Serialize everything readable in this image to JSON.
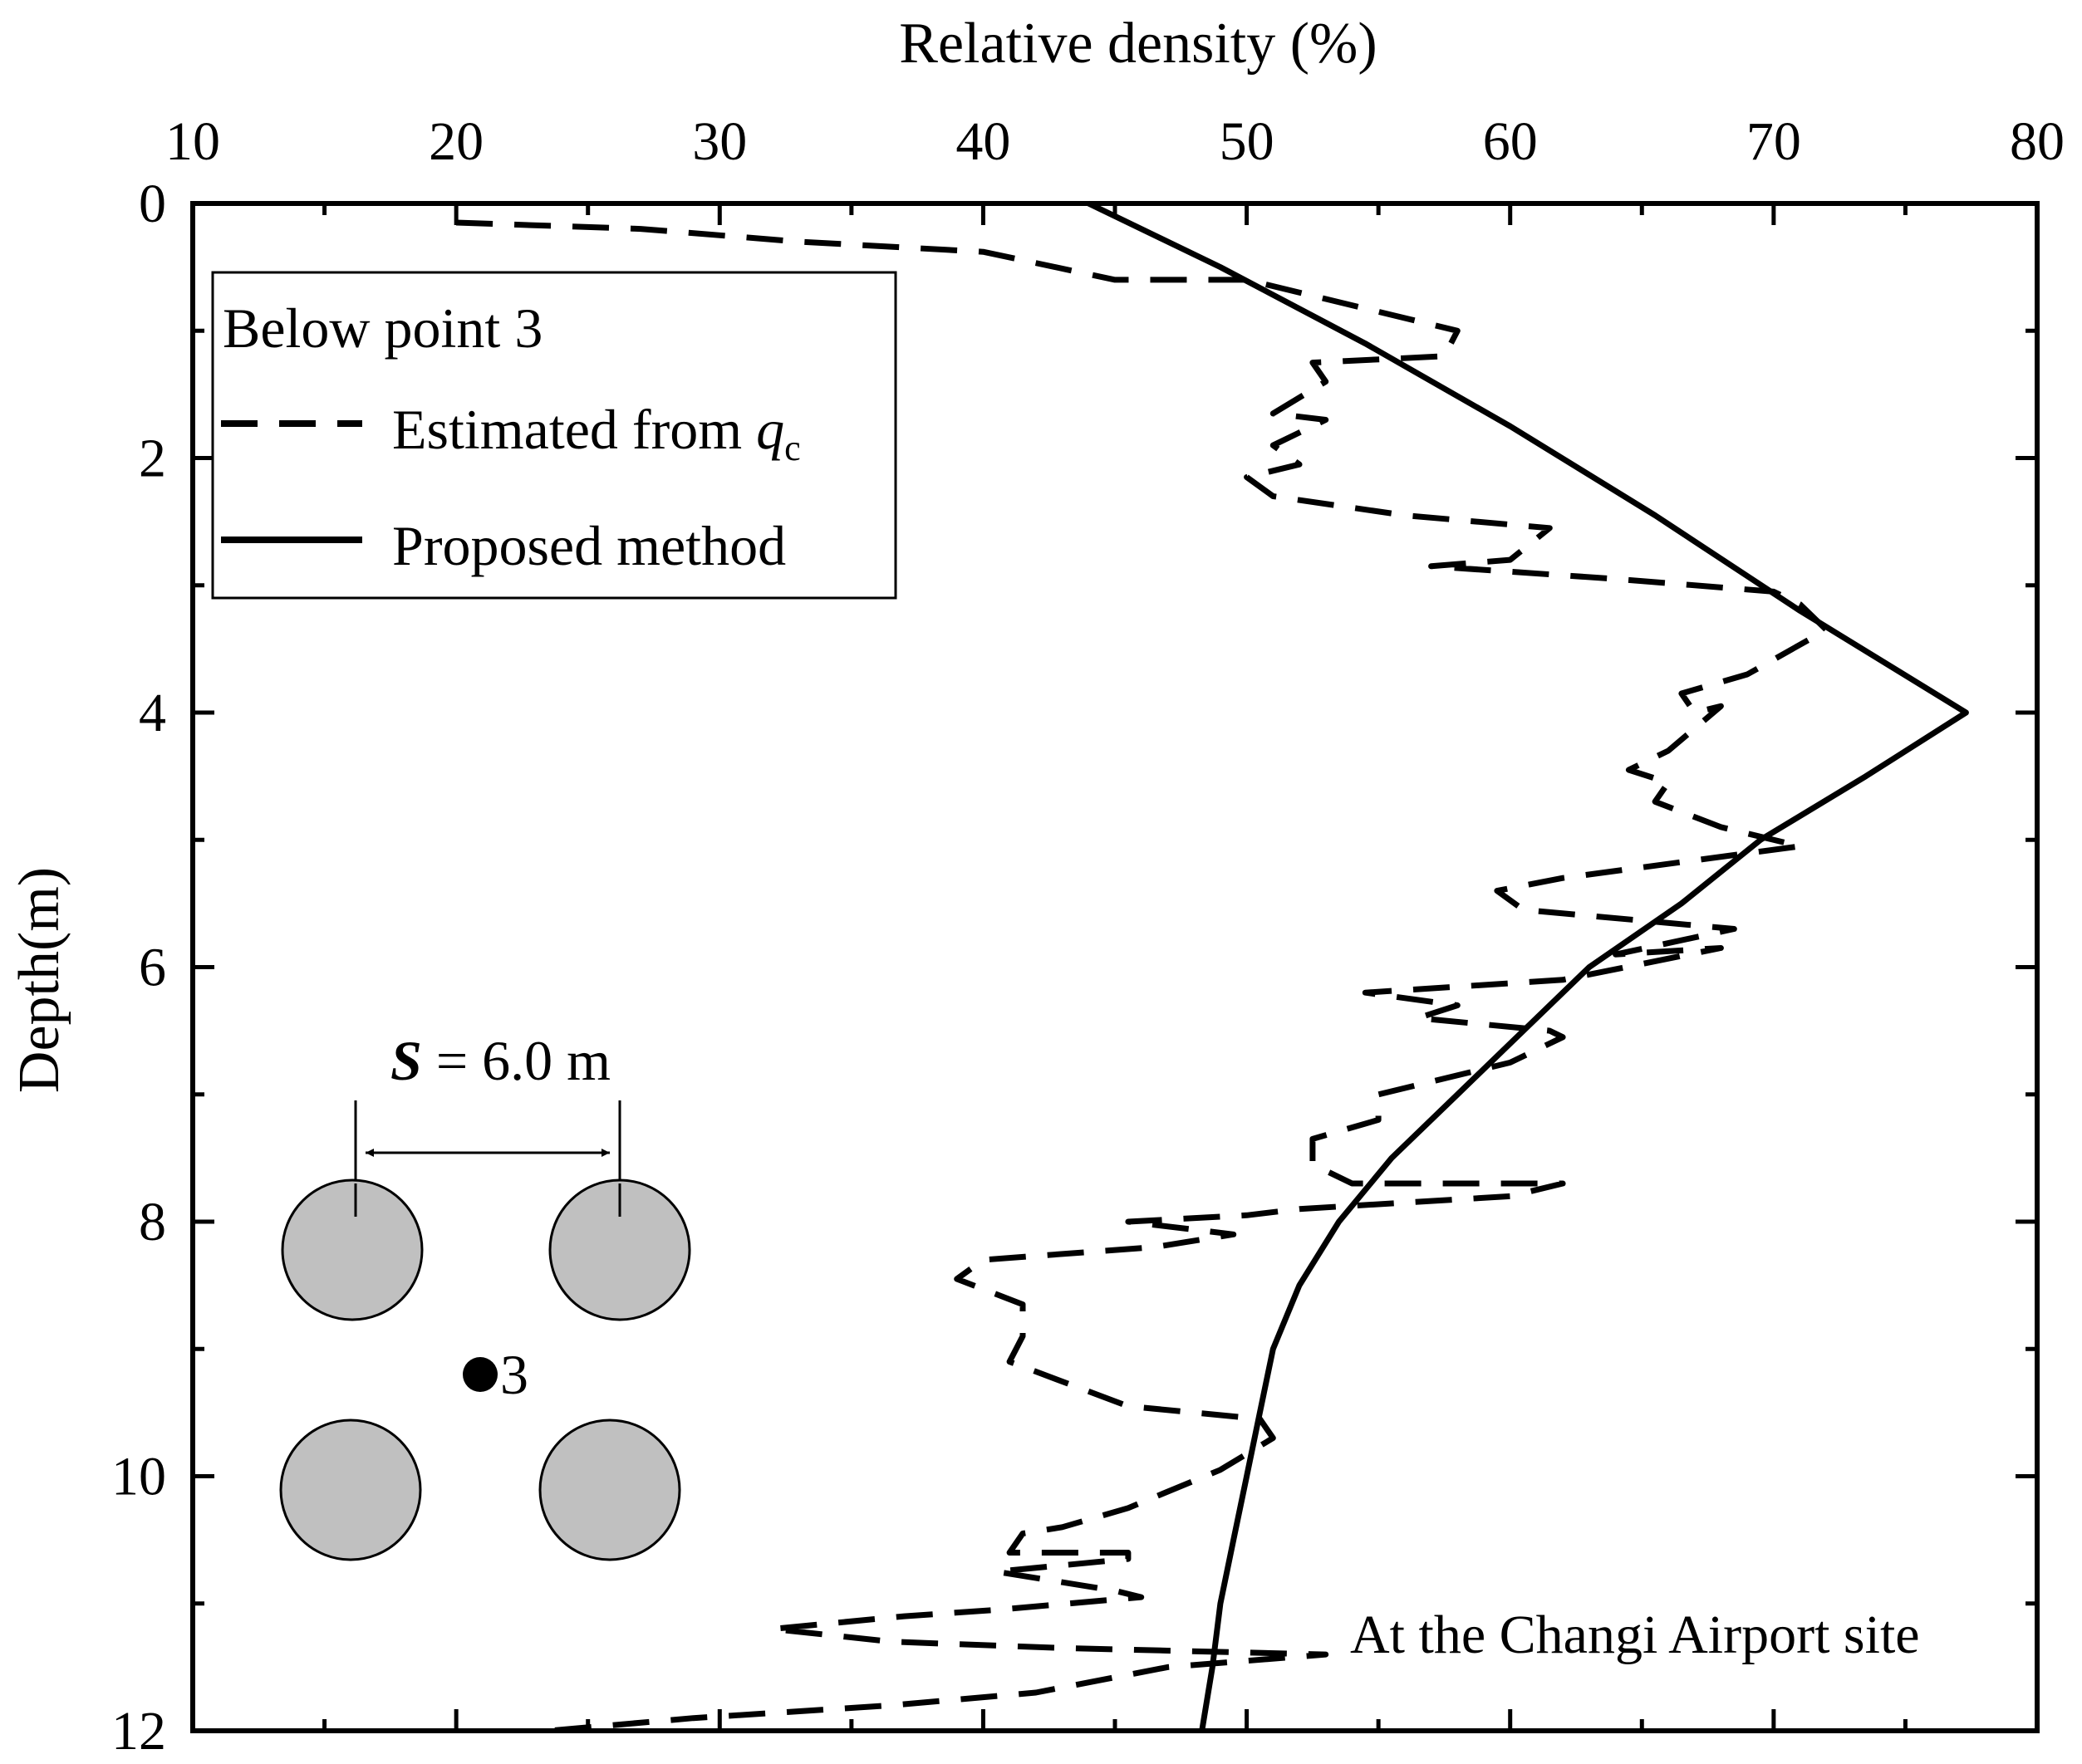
{
  "chart_data": {
    "type": "line",
    "title": "",
    "xlabel": "Relative density (%)",
    "ylabel": "Depth(m)",
    "xlim": [
      10,
      80
    ],
    "ylim": [
      0,
      12
    ],
    "x_axis_position": "top",
    "y_axis_inverted": true,
    "x_ticks": [
      10,
      20,
      30,
      40,
      50,
      60,
      70,
      80
    ],
    "y_ticks": [
      0,
      2,
      4,
      6,
      8,
      10,
      12
    ],
    "grid": false,
    "legend": {
      "title": "Below point 3",
      "placement": "top-left",
      "entries": [
        {
          "label": "Estimated from ",
          "label_italic": "q",
          "label_sub": "c",
          "style": "dashed"
        },
        {
          "label": "Proposed method",
          "style": "solid"
        }
      ]
    },
    "annotation": "At the Changi Airport site",
    "inset": {
      "spacing_symbol": "S",
      "spacing_text": " = 6.0 m",
      "point_label": "3"
    },
    "series": [
      {
        "name": "Estimated from qc",
        "style": "dashed",
        "points": [
          [
            20.0,
            0.15
          ],
          [
            27.0,
            0.2
          ],
          [
            33.0,
            0.3
          ],
          [
            40.0,
            0.38
          ],
          [
            45.0,
            0.6
          ],
          [
            50.0,
            0.6
          ],
          [
            55.0,
            0.85
          ],
          [
            58.0,
            1.0
          ],
          [
            57.5,
            1.2
          ],
          [
            52.5,
            1.25
          ],
          [
            53.0,
            1.4
          ],
          [
            51.0,
            1.65
          ],
          [
            53.0,
            1.7
          ],
          [
            51.0,
            1.9
          ],
          [
            52.0,
            2.05
          ],
          [
            50.0,
            2.15
          ],
          [
            51.0,
            2.3
          ],
          [
            56.0,
            2.45
          ],
          [
            61.5,
            2.55
          ],
          [
            60.0,
            2.8
          ],
          [
            57.0,
            2.85
          ],
          [
            64.0,
            2.95
          ],
          [
            70.0,
            3.05
          ],
          [
            71.0,
            3.15
          ],
          [
            72.0,
            3.35
          ],
          [
            69.0,
            3.7
          ],
          [
            66.5,
            3.85
          ],
          [
            67.0,
            4.0
          ],
          [
            68.0,
            3.95
          ],
          [
            66.0,
            4.3
          ],
          [
            64.5,
            4.45
          ],
          [
            66.0,
            4.55
          ],
          [
            65.5,
            4.7
          ],
          [
            68.0,
            4.9
          ],
          [
            71.0,
            5.05
          ],
          [
            62.0,
            5.3
          ],
          [
            59.5,
            5.4
          ],
          [
            60.5,
            5.55
          ],
          [
            68.5,
            5.7
          ],
          [
            64.0,
            5.9
          ],
          [
            68.0,
            5.85
          ],
          [
            62.0,
            6.1
          ],
          [
            54.5,
            6.2
          ],
          [
            58.0,
            6.3
          ],
          [
            56.5,
            6.4
          ],
          [
            61.5,
            6.5
          ],
          [
            62.0,
            6.55
          ],
          [
            60.0,
            6.75
          ],
          [
            55.0,
            7.0
          ],
          [
            55.0,
            7.2
          ],
          [
            52.5,
            7.35
          ],
          [
            52.5,
            7.55
          ],
          [
            54.0,
            7.7
          ],
          [
            62.0,
            7.7
          ],
          [
            60.0,
            7.8
          ],
          [
            52.0,
            7.9
          ],
          [
            50.0,
            7.95
          ],
          [
            45.5,
            8.0
          ],
          [
            49.5,
            8.1
          ],
          [
            46.5,
            8.2
          ],
          [
            40.0,
            8.3
          ],
          [
            39.0,
            8.45
          ],
          [
            41.5,
            8.65
          ],
          [
            41.5,
            8.9
          ],
          [
            41.0,
            9.1
          ],
          [
            45.5,
            9.45
          ],
          [
            50.5,
            9.55
          ],
          [
            51.0,
            9.7
          ],
          [
            49.0,
            9.95
          ],
          [
            45.5,
            10.25
          ],
          [
            43.0,
            10.4
          ],
          [
            41.5,
            10.45
          ],
          [
            41.0,
            10.6
          ],
          [
            45.5,
            10.6
          ],
          [
            45.5,
            10.65
          ],
          [
            40.5,
            10.75
          ],
          [
            45.0,
            10.9
          ],
          [
            46.0,
            10.95
          ],
          [
            40.5,
            11.05
          ],
          [
            37.0,
            11.1
          ],
          [
            32.0,
            11.2
          ],
          [
            36.5,
            11.3
          ],
          [
            43.0,
            11.35
          ],
          [
            53.0,
            11.4
          ],
          [
            47.0,
            11.5
          ],
          [
            42.0,
            11.7
          ],
          [
            36.5,
            11.8
          ],
          [
            29.0,
            11.9
          ],
          [
            23.5,
            12.0
          ]
        ]
      },
      {
        "name": "Proposed method",
        "style": "solid",
        "points": [
          [
            44.0,
            0.0
          ],
          [
            49.0,
            0.5
          ],
          [
            54.5,
            1.1
          ],
          [
            60.0,
            1.75
          ],
          [
            65.5,
            2.45
          ],
          [
            71.0,
            3.2
          ],
          [
            77.3,
            4.0
          ],
          [
            73.5,
            4.5
          ],
          [
            69.5,
            5.0
          ],
          [
            66.5,
            5.5
          ],
          [
            63.0,
            6.0
          ],
          [
            60.5,
            6.5
          ],
          [
            58.0,
            7.0
          ],
          [
            55.5,
            7.5
          ],
          [
            53.5,
            8.0
          ],
          [
            52.0,
            8.5
          ],
          [
            51.0,
            9.0
          ],
          [
            50.5,
            9.5
          ],
          [
            50.0,
            10.0
          ],
          [
            49.5,
            10.5
          ],
          [
            49.0,
            11.0
          ],
          [
            48.7,
            11.5
          ],
          [
            48.3,
            12.0
          ]
        ]
      }
    ]
  }
}
